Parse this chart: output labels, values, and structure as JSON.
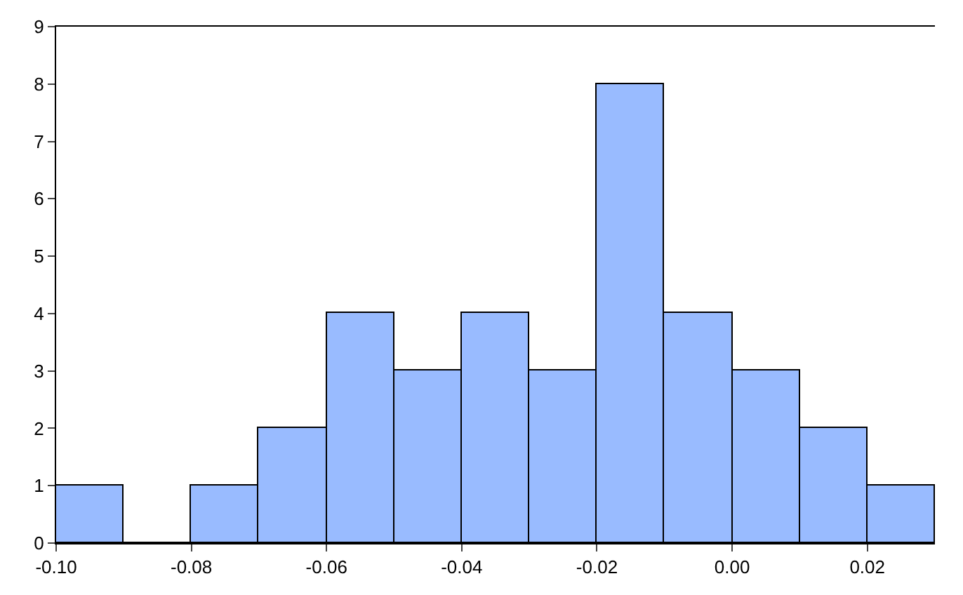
{
  "chart_data": {
    "type": "histogram",
    "bins": [
      -0.1,
      -0.09,
      -0.08,
      -0.07,
      -0.06,
      -0.05,
      -0.04,
      -0.03,
      -0.02,
      -0.01,
      0.0,
      0.01,
      0.02,
      0.03
    ],
    "values": [
      1,
      0,
      1,
      2,
      4,
      3,
      4,
      3,
      8,
      4,
      3,
      2,
      1
    ],
    "color": "#99bbff",
    "xlim": [
      -0.1,
      0.03
    ],
    "xticks": [
      {
        "value": -0.1,
        "label": "-0.10"
      },
      {
        "value": -0.08,
        "label": "-0.08"
      },
      {
        "value": -0.06,
        "label": "-0.06"
      },
      {
        "value": -0.04,
        "label": "-0.04"
      },
      {
        "value": -0.02,
        "label": "-0.02"
      },
      {
        "value": 0.0,
        "label": "0.00"
      },
      {
        "value": 0.02,
        "label": "0.02"
      }
    ],
    "ylim": [
      0,
      9
    ],
    "yticks": [
      0,
      1,
      2,
      3,
      4,
      5,
      6,
      7,
      8,
      9
    ]
  }
}
